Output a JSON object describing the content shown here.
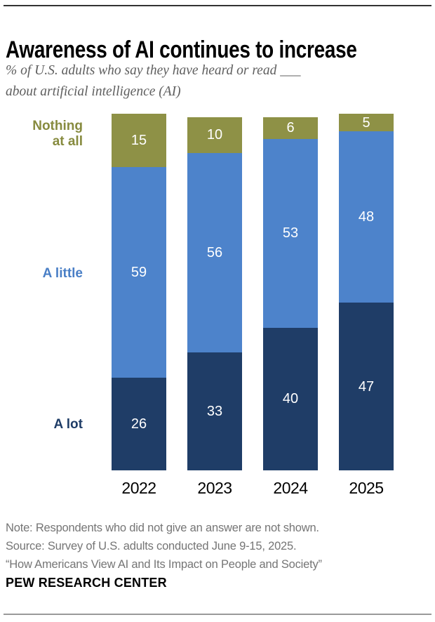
{
  "header": {
    "title": "Awareness of AI continues to increase"
  },
  "subtitle": {
    "lines": [
      "% of U.S. adults who say they have heard or read ___",
      "about artificial intelligence (AI)"
    ]
  },
  "chart_data": {
    "type": "bar",
    "stacked": true,
    "title": "Awareness of AI continues to increase",
    "subtitle": "% of U.S. adults who say they have heard or read ___ about artificial intelligence (AI)",
    "categories": [
      "2022",
      "2023",
      "2024",
      "2025"
    ],
    "series": [
      {
        "name": "Nothing at all",
        "values": [
          15,
          10,
          6,
          5
        ],
        "color": "#8e9146",
        "label_color": "#878b3f"
      },
      {
        "name": "A little",
        "values": [
          59,
          56,
          53,
          48
        ],
        "color": "#4d83cb",
        "label_color": "#4a7fc6"
      },
      {
        "name": "A lot",
        "values": [
          26,
          33,
          40,
          47
        ],
        "color": "#1f3d67",
        "label_color": "#1f3d67"
      }
    ],
    "xlabel": "",
    "ylabel": "",
    "ylim": [
      0,
      100
    ],
    "grid": false,
    "legend_position": "left",
    "value_label_color": "#ffffff",
    "axis_label_color": "#000000"
  },
  "footer": {
    "note": "Note: Respondents who did not give an answer are not shown.",
    "source": "Source: Survey of U.S. adults conducted June 9-15, 2025.",
    "report": "“How Americans View AI and Its Impact on People and Society”",
    "brand": "PEW RESEARCH CENTER"
  }
}
